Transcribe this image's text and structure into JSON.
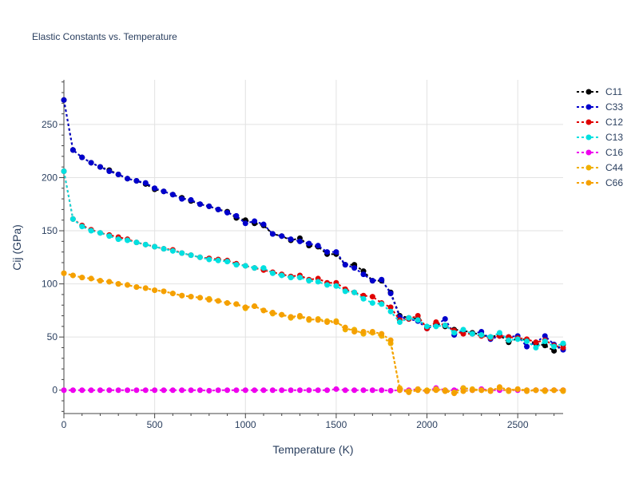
{
  "chart_data": {
    "type": "line",
    "title": "Elastic Constants vs. Temperature",
    "xlabel": "Temperature (K)",
    "ylabel": "Cij (GPa)",
    "xlim": [
      0,
      2750
    ],
    "ylim": [
      -22,
      292
    ],
    "xticks": [
      0,
      500,
      1000,
      1500,
      2000,
      2500
    ],
    "yticks": [
      0,
      50,
      100,
      150,
      200,
      250
    ],
    "grid": true,
    "legend_position": "top-right",
    "x": [
      0,
      50,
      100,
      150,
      200,
      250,
      300,
      350,
      400,
      450,
      500,
      550,
      600,
      650,
      700,
      750,
      800,
      850,
      900,
      950,
      1000,
      1050,
      1100,
      1150,
      1200,
      1250,
      1300,
      1350,
      1400,
      1450,
      1500,
      1550,
      1600,
      1650,
      1700,
      1750,
      1800,
      1850,
      1900,
      1950,
      2000,
      2050,
      2100,
      2150,
      2200,
      2250,
      2300,
      2350,
      2400,
      2450,
      2500,
      2550,
      2600,
      2650,
      2700,
      2750
    ],
    "series": [
      {
        "name": "C11",
        "color": "#000000",
        "values": [
          273,
          226,
          219,
          214,
          210,
          207,
          203,
          199,
          197,
          194,
          189,
          187,
          184,
          181,
          178,
          175,
          173,
          170,
          168,
          162,
          160,
          157,
          155,
          147,
          145,
          141,
          143,
          136,
          135,
          128,
          128,
          118,
          118,
          112,
          103,
          103,
          92,
          70,
          68,
          67,
          59,
          63,
          60,
          57,
          56,
          54,
          52,
          50,
          52,
          45,
          49,
          47,
          44,
          42,
          37,
          43
        ]
      },
      {
        "name": "C33",
        "color": "#0000cc",
        "values": [
          273,
          226,
          219,
          214,
          210,
          206,
          203,
          199,
          197,
          195,
          190,
          187,
          184,
          180,
          179,
          175,
          173,
          170,
          167,
          164,
          157,
          159,
          156,
          147,
          145,
          142,
          140,
          138,
          136,
          130,
          130,
          118,
          115,
          109,
          103,
          104,
          91,
          69,
          67,
          65,
          58,
          61,
          67,
          52,
          56,
          53,
          55,
          48,
          51,
          50,
          51,
          41,
          45,
          51,
          43,
          38
        ]
      },
      {
        "name": "C12",
        "color": "#e00000",
        "values": [
          206,
          161,
          155,
          151,
          148,
          146,
          144,
          142,
          139,
          137,
          135,
          133,
          132,
          129,
          127,
          125,
          124,
          123,
          122,
          119,
          117,
          115,
          113,
          111,
          109,
          107,
          108,
          104,
          105,
          101,
          101,
          95,
          92,
          89,
          88,
          82,
          78,
          66,
          67,
          70,
          58,
          64,
          61,
          56,
          53,
          53,
          51,
          49,
          51,
          50,
          49,
          48,
          45,
          47,
          42,
          40
        ]
      },
      {
        "name": "C13",
        "color": "#00e0e0",
        "values": [
          206,
          161,
          154,
          150,
          148,
          145,
          142,
          141,
          139,
          137,
          135,
          133,
          131,
          129,
          127,
          125,
          123,
          122,
          121,
          118,
          117,
          115,
          115,
          110,
          108,
          106,
          106,
          103,
          102,
          99,
          98,
          93,
          92,
          86,
          82,
          81,
          74,
          64,
          68,
          66,
          60,
          60,
          61,
          54,
          57,
          53,
          52,
          50,
          54,
          47,
          48,
          46,
          40,
          46,
          41,
          44
        ]
      },
      {
        "name": "C16",
        "color": "#ee00ee",
        "values": [
          0,
          0,
          0,
          0,
          0,
          0,
          0,
          0,
          0,
          0,
          0,
          0,
          0,
          0,
          0,
          0,
          -0.5,
          0,
          0,
          0,
          0,
          0,
          0,
          0,
          0,
          0,
          0,
          0,
          0,
          0,
          1,
          0,
          0,
          0,
          0,
          0,
          -0.5,
          0,
          0,
          1,
          -1,
          2,
          0,
          0,
          2,
          0,
          1,
          0,
          0,
          0,
          0,
          0,
          0,
          0,
          0,
          0
        ]
      },
      {
        "name": "C44",
        "color": "#f0b000",
        "values": [
          110,
          108,
          106,
          105,
          103,
          102,
          100,
          99,
          97,
          96,
          94,
          93,
          91,
          89,
          88,
          87,
          86,
          84,
          82,
          81,
          77,
          79,
          75,
          72,
          71,
          68,
          69,
          66,
          67,
          65,
          65,
          57,
          57,
          53,
          54,
          51,
          44,
          2,
          -1,
          1,
          0,
          1,
          0,
          -2,
          2,
          1,
          0,
          0,
          2,
          -1,
          1,
          0,
          0,
          -1,
          0,
          -1
        ]
      },
      {
        "name": "C66",
        "color": "#f5a000",
        "values": [
          110,
          108,
          106,
          105,
          103,
          102,
          100,
          99,
          97,
          96,
          94,
          93,
          91,
          89,
          88,
          87,
          85,
          84,
          82,
          81,
          78,
          79,
          75,
          73,
          71,
          69,
          70,
          67,
          66,
          64,
          64,
          59,
          55,
          55,
          55,
          53,
          47,
          0,
          -2,
          0,
          -1,
          0,
          -1,
          -3,
          -1,
          0,
          0,
          -1,
          3,
          0,
          1,
          -1,
          0,
          0,
          0,
          0
        ]
      }
    ]
  }
}
